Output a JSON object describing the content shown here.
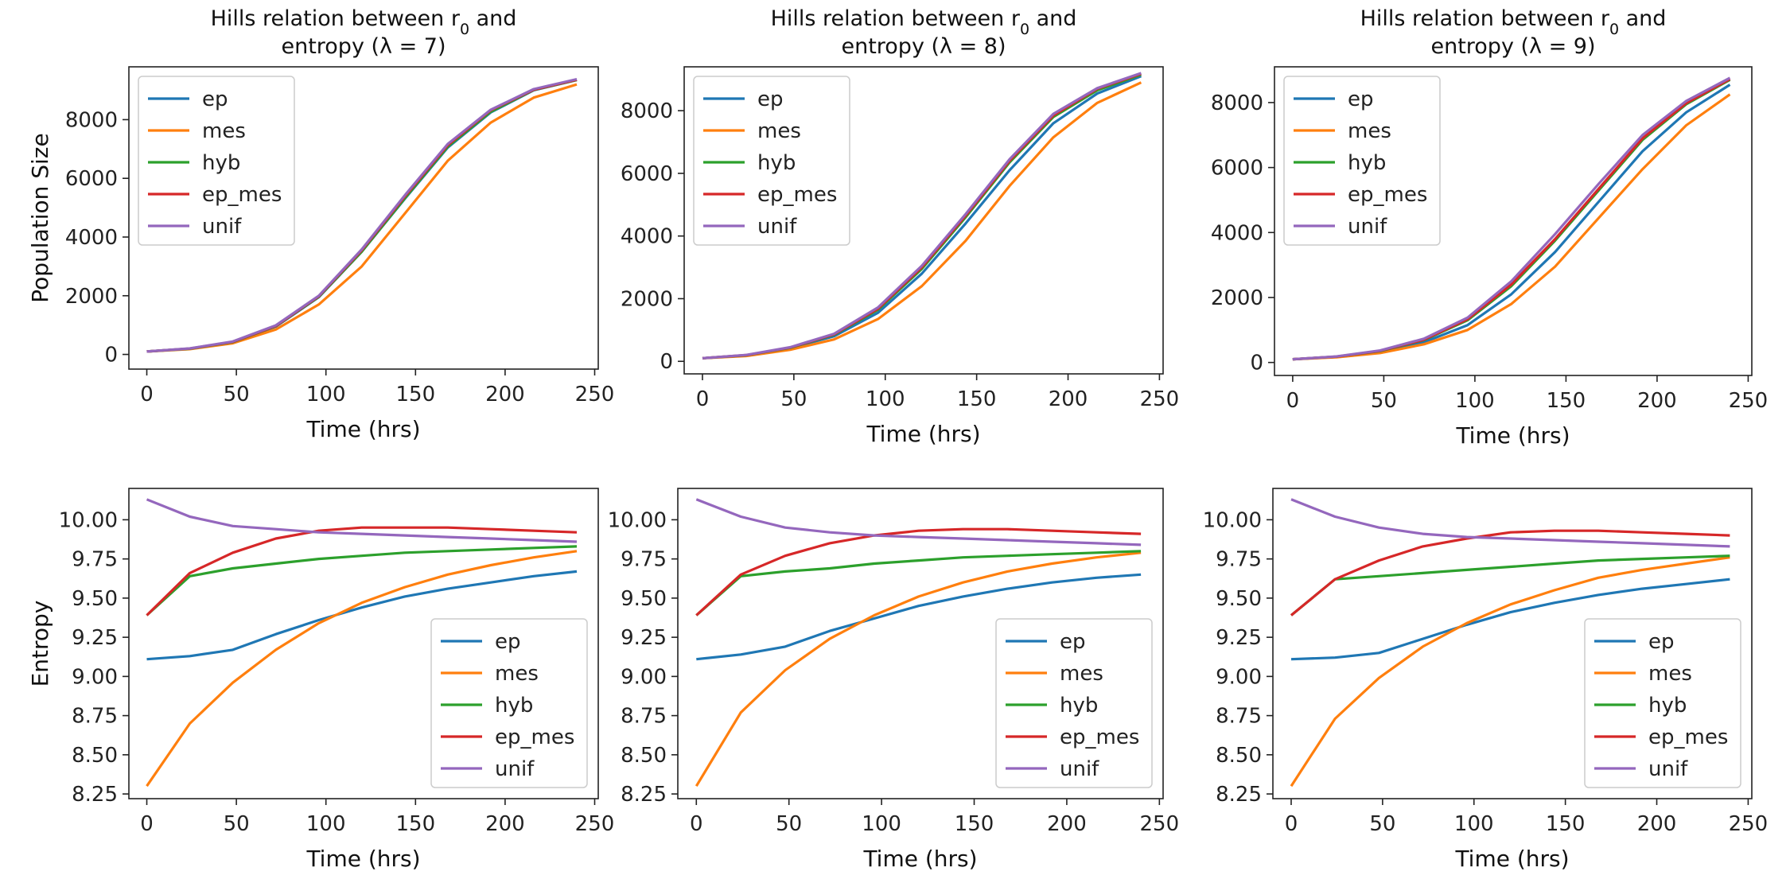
{
  "colors": {
    "ep": "#1f77b4",
    "mes": "#ff7f0e",
    "hyb": "#2ca02c",
    "ep_mes": "#d62728",
    "unif": "#9467bd"
  },
  "chart_data": [
    {
      "type": "line",
      "panel": "top-left",
      "title_line1": "Hills relation between r",
      "title_sub": "0",
      "title_line1_end": " and",
      "title_line2": "entropy (λ = 7)",
      "xlabel": "Time (hrs)",
      "ylabel": "Population Size",
      "xlim": [
        -10,
        252
      ],
      "ylim": [
        -500,
        9800
      ],
      "xticks": [
        0,
        50,
        100,
        150,
        200,
        250
      ],
      "yticks": [
        0,
        2000,
        4000,
        6000,
        8000
      ],
      "legend_loc": "upper-left",
      "x": [
        0,
        24,
        48,
        72,
        96,
        120,
        144,
        168,
        192,
        216,
        240
      ],
      "series": [
        {
          "name": "ep",
          "values": [
            100,
            200,
            420,
            950,
            1950,
            3500,
            5300,
            7050,
            8250,
            9000,
            9350
          ]
        },
        {
          "name": "mes",
          "values": [
            100,
            180,
            380,
            850,
            1700,
            3000,
            4800,
            6600,
            7900,
            8750,
            9200
          ]
        },
        {
          "name": "hyb",
          "values": [
            100,
            195,
            420,
            960,
            1960,
            3500,
            5320,
            7080,
            8270,
            9010,
            9350
          ]
        },
        {
          "name": "ep_mes",
          "values": [
            100,
            200,
            430,
            970,
            1980,
            3550,
            5380,
            7130,
            8320,
            9020,
            9360
          ]
        },
        {
          "name": "unif",
          "values": [
            100,
            205,
            440,
            990,
            2000,
            3580,
            5420,
            7170,
            8340,
            9040,
            9380
          ]
        }
      ]
    },
    {
      "type": "line",
      "panel": "top-middle",
      "title_line1": "Hills relation between r",
      "title_sub": "0",
      "title_line1_end": " and",
      "title_line2": "entropy (λ = 8)",
      "xlabel": "Time (hrs)",
      "ylabel": "",
      "xlim": [
        -10,
        252
      ],
      "ylim": [
        -400,
        9400
      ],
      "xticks": [
        0,
        50,
        100,
        150,
        200,
        250
      ],
      "yticks": [
        0,
        2000,
        4000,
        6000,
        8000
      ],
      "legend_loc": "upper-left",
      "x": [
        0,
        24,
        48,
        72,
        96,
        120,
        144,
        168,
        192,
        216,
        240
      ],
      "series": [
        {
          "name": "ep",
          "values": [
            100,
            190,
            420,
            800,
            1550,
            2800,
            4400,
            6100,
            7600,
            8550,
            9100
          ]
        },
        {
          "name": "mes",
          "values": [
            100,
            170,
            370,
            700,
            1350,
            2400,
            3850,
            5600,
            7150,
            8250,
            8900
          ]
        },
        {
          "name": "hyb",
          "values": [
            100,
            195,
            430,
            850,
            1650,
            2950,
            4600,
            6350,
            7800,
            8650,
            9150
          ]
        },
        {
          "name": "ep_mes",
          "values": [
            100,
            200,
            440,
            860,
            1680,
            3000,
            4650,
            6400,
            7850,
            8700,
            9180
          ]
        },
        {
          "name": "unif",
          "values": [
            100,
            205,
            450,
            880,
            1720,
            3050,
            4700,
            6450,
            7900,
            8720,
            9200
          ]
        }
      ]
    },
    {
      "type": "line",
      "panel": "top-right",
      "title_line1": "Hills relation between r",
      "title_sub": "0",
      "title_line1_end": " and",
      "title_line2": "entropy (λ = 9)",
      "xlabel": "Time (hrs)",
      "ylabel": "",
      "xlim": [
        -10,
        252
      ],
      "ylim": [
        -400,
        9100
      ],
      "xticks": [
        0,
        50,
        100,
        150,
        200,
        250
      ],
      "yticks": [
        0,
        2000,
        4000,
        6000,
        8000
      ],
      "legend_loc": "upper-left",
      "x": [
        0,
        24,
        48,
        72,
        96,
        120,
        144,
        168,
        192,
        216,
        240
      ],
      "series": [
        {
          "name": "ep",
          "values": [
            100,
            170,
            320,
            620,
            1150,
            2100,
            3400,
            4950,
            6500,
            7700,
            8550
          ]
        },
        {
          "name": "mes",
          "values": [
            100,
            160,
            290,
            560,
            1000,
            1800,
            2950,
            4450,
            5950,
            7300,
            8250
          ]
        },
        {
          "name": "hyb",
          "values": [
            100,
            180,
            350,
            690,
            1300,
            2350,
            3750,
            5300,
            6850,
            7950,
            8700
          ]
        },
        {
          "name": "ep_mes",
          "values": [
            100,
            180,
            360,
            700,
            1330,
            2400,
            3800,
            5350,
            6900,
            7980,
            8720
          ]
        },
        {
          "name": "unif",
          "values": [
            100,
            185,
            370,
            730,
            1380,
            2500,
            3950,
            5500,
            7000,
            8050,
            8760
          ]
        }
      ]
    },
    {
      "type": "line",
      "panel": "bottom-left",
      "xlabel": "Time (hrs)",
      "ylabel": "Entropy",
      "xlim": [
        -10,
        252
      ],
      "ylim": [
        8.22,
        10.2
      ],
      "xticks": [
        0,
        50,
        100,
        150,
        200,
        250
      ],
      "yticks": [
        "8.25",
        "8.50",
        "8.75",
        "9.00",
        "9.25",
        "9.50",
        "9.75",
        "10.00"
      ],
      "legend_loc": "lower-right",
      "x": [
        0,
        24,
        48,
        72,
        96,
        120,
        144,
        168,
        192,
        216,
        240
      ],
      "series": [
        {
          "name": "ep",
          "values": [
            9.11,
            9.13,
            9.17,
            9.27,
            9.36,
            9.44,
            9.51,
            9.56,
            9.6,
            9.64,
            9.67
          ]
        },
        {
          "name": "mes",
          "values": [
            8.3,
            8.7,
            8.96,
            9.17,
            9.34,
            9.47,
            9.57,
            9.65,
            9.71,
            9.76,
            9.8
          ]
        },
        {
          "name": "hyb",
          "values": [
            9.39,
            9.64,
            9.69,
            9.72,
            9.75,
            9.77,
            9.79,
            9.8,
            9.81,
            9.82,
            9.83
          ]
        },
        {
          "name": "ep_mes",
          "values": [
            9.39,
            9.66,
            9.79,
            9.88,
            9.93,
            9.95,
            9.95,
            9.95,
            9.94,
            9.93,
            9.92
          ]
        },
        {
          "name": "unif",
          "values": [
            10.13,
            10.02,
            9.96,
            9.94,
            9.92,
            9.91,
            9.9,
            9.89,
            9.88,
            9.87,
            9.86
          ]
        }
      ]
    },
    {
      "type": "line",
      "panel": "bottom-middle",
      "xlabel": "Time (hrs)",
      "ylabel": "",
      "xlim": [
        -10,
        252
      ],
      "ylim": [
        8.22,
        10.2
      ],
      "xticks": [
        0,
        50,
        100,
        150,
        200,
        250
      ],
      "yticks": [
        "8.25",
        "8.50",
        "8.75",
        "9.00",
        "9.25",
        "9.50",
        "9.75",
        "10.00"
      ],
      "legend_loc": "lower-right",
      "x": [
        0,
        24,
        48,
        72,
        96,
        120,
        144,
        168,
        192,
        216,
        240
      ],
      "series": [
        {
          "name": "ep",
          "values": [
            9.11,
            9.14,
            9.19,
            9.29,
            9.37,
            9.45,
            9.51,
            9.56,
            9.6,
            9.63,
            9.65
          ]
        },
        {
          "name": "mes",
          "values": [
            8.3,
            8.77,
            9.04,
            9.24,
            9.39,
            9.51,
            9.6,
            9.67,
            9.72,
            9.76,
            9.79
          ]
        },
        {
          "name": "hyb",
          "values": [
            9.39,
            9.64,
            9.67,
            9.69,
            9.72,
            9.74,
            9.76,
            9.77,
            9.78,
            9.79,
            9.8
          ]
        },
        {
          "name": "ep_mes",
          "values": [
            9.39,
            9.65,
            9.77,
            9.85,
            9.9,
            9.93,
            9.94,
            9.94,
            9.93,
            9.92,
            9.91
          ]
        },
        {
          "name": "unif",
          "values": [
            10.13,
            10.02,
            9.95,
            9.92,
            9.9,
            9.89,
            9.88,
            9.87,
            9.86,
            9.85,
            9.84
          ]
        }
      ]
    },
    {
      "type": "line",
      "panel": "bottom-right",
      "xlabel": "Time (hrs)",
      "ylabel": "",
      "xlim": [
        -10,
        252
      ],
      "ylim": [
        8.22,
        10.2
      ],
      "xticks": [
        0,
        50,
        100,
        150,
        200,
        250
      ],
      "yticks": [
        "8.25",
        "8.50",
        "8.75",
        "9.00",
        "9.25",
        "9.50",
        "9.75",
        "10.00"
      ],
      "legend_loc": "lower-right",
      "x": [
        0,
        24,
        48,
        72,
        96,
        120,
        144,
        168,
        192,
        216,
        240
      ],
      "series": [
        {
          "name": "ep",
          "values": [
            9.11,
            9.12,
            9.15,
            9.24,
            9.33,
            9.41,
            9.47,
            9.52,
            9.56,
            9.59,
            9.62
          ]
        },
        {
          "name": "mes",
          "values": [
            8.3,
            8.73,
            8.99,
            9.19,
            9.34,
            9.46,
            9.55,
            9.63,
            9.68,
            9.72,
            9.76
          ]
        },
        {
          "name": "hyb",
          "values": [
            9.39,
            9.62,
            9.64,
            9.66,
            9.68,
            9.7,
            9.72,
            9.74,
            9.75,
            9.76,
            9.77
          ]
        },
        {
          "name": "ep_mes",
          "values": [
            9.39,
            9.62,
            9.74,
            9.83,
            9.88,
            9.92,
            9.93,
            9.93,
            9.92,
            9.91,
            9.9
          ]
        },
        {
          "name": "unif",
          "values": [
            10.13,
            10.02,
            9.95,
            9.91,
            9.89,
            9.88,
            9.87,
            9.86,
            9.85,
            9.84,
            9.83
          ]
        }
      ]
    }
  ]
}
